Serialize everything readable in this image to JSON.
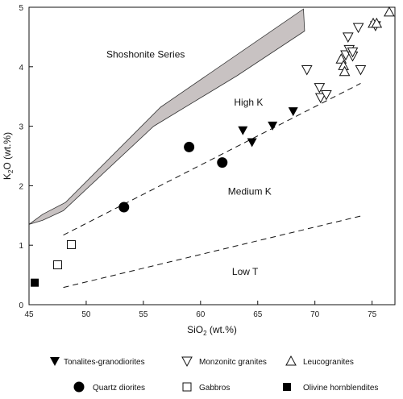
{
  "chart_data": {
    "type": "scatter",
    "title": "",
    "xlabel": "SiO2 (wt.%)",
    "xlabel_main": "SiO",
    "xlabel_sub": "2",
    "xlabel_tail": " (wt.%)",
    "ylabel": "K2O (wt.%)",
    "ylabel_main": "K",
    "ylabel_sub": "2",
    "ylabel_tail": "O (wt.%)",
    "xlim": [
      45,
      77
    ],
    "ylim": [
      0,
      5
    ],
    "xticks": [
      45,
      50,
      55,
      60,
      65,
      70,
      75
    ],
    "yticks": [
      0,
      1,
      2,
      3,
      4,
      5
    ],
    "grid": false,
    "legend_position": "bottom",
    "region_labels": [
      {
        "text": "Shoshonite Series",
        "x": 55.2,
        "y": 4.15
      },
      {
        "text": "High K",
        "x": 64.2,
        "y": 3.35
      },
      {
        "text": "Medium K",
        "x": 64.3,
        "y": 1.85
      },
      {
        "text": "Low T",
        "x": 63.9,
        "y": 0.5
      }
    ],
    "boundaries": [
      {
        "name": "shoshonite-band",
        "style": "band",
        "color": "#c8c2c2",
        "upper": [
          [
            45,
            1.35
          ],
          [
            46.2,
            1.52
          ],
          [
            48.2,
            1.72
          ],
          [
            56.5,
            3.32
          ],
          [
            69,
            4.97
          ]
        ],
        "lower": [
          [
            69.1,
            4.6
          ],
          [
            63.2,
            3.85
          ],
          [
            55.9,
            3.0
          ],
          [
            48,
            1.58
          ],
          [
            46.2,
            1.42
          ],
          [
            45,
            1.35
          ]
        ]
      },
      {
        "name": "high-k-boundary",
        "style": "dashed",
        "points": [
          [
            48,
            1.17
          ],
          [
            74,
            3.72
          ]
        ]
      },
      {
        "name": "medium-k-boundary",
        "style": "dashed",
        "points": [
          [
            48,
            0.29
          ],
          [
            74,
            1.49
          ]
        ]
      }
    ],
    "series": [
      {
        "name": "Tonalites-granodiorites",
        "marker": "triangle-down-filled",
        "points": [
          [
            63.7,
            2.93
          ],
          [
            64.5,
            2.73
          ],
          [
            66.3,
            3.01
          ],
          [
            68.1,
            3.25
          ]
        ]
      },
      {
        "name": "Monzonitc granites",
        "marker": "triangle-down-open",
        "points": [
          [
            69.3,
            3.95
          ],
          [
            70.4,
            3.65
          ],
          [
            70.5,
            3.48
          ],
          [
            71.0,
            3.53
          ],
          [
            72.7,
            4.2
          ],
          [
            72.9,
            4.5
          ],
          [
            73.0,
            4.29
          ],
          [
            73.3,
            4.18
          ],
          [
            73.3,
            4.25
          ],
          [
            73.8,
            4.66
          ],
          [
            74.0,
            3.95
          ],
          [
            75.3,
            4.69
          ]
        ]
      },
      {
        "name": "Leucogranites",
        "marker": "triangle-up-open",
        "points": [
          [
            72.3,
            4.13
          ],
          [
            72.5,
            4.02
          ],
          [
            72.6,
            3.92
          ],
          [
            75.1,
            4.73
          ],
          [
            75.4,
            4.73
          ],
          [
            76.5,
            4.92
          ]
        ]
      },
      {
        "name": "Quartz diorites",
        "marker": "circle-filled",
        "points": [
          [
            53.3,
            1.64
          ],
          [
            59.0,
            2.65
          ],
          [
            61.9,
            2.39
          ]
        ]
      },
      {
        "name": "Gabbros",
        "marker": "square-open",
        "points": [
          [
            47.5,
            0.67
          ],
          [
            48.7,
            1.01
          ]
        ]
      },
      {
        "name": "Olivine hornblendites",
        "marker": "square-filled",
        "points": [
          [
            45.5,
            0.37
          ]
        ]
      }
    ]
  }
}
